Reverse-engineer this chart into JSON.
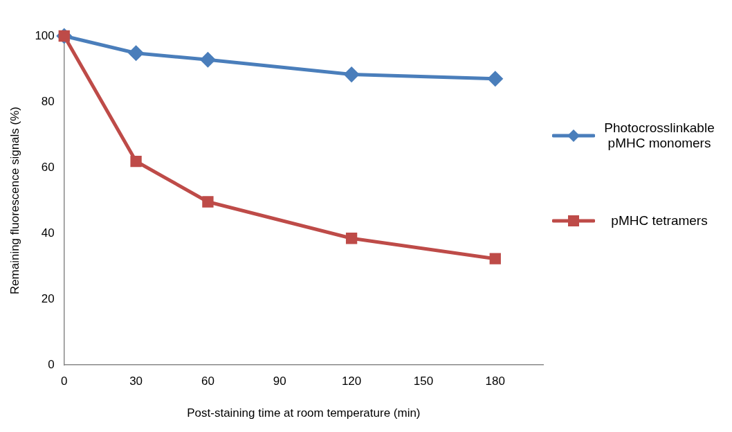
{
  "chart_data": {
    "type": "line",
    "xlabel": "Post-staining time at room temperature (min)",
    "ylabel": "Remaining fluorescence signals (%)",
    "x": [
      0,
      30,
      60,
      120,
      180
    ],
    "xlim": [
      0,
      200
    ],
    "xticks": [
      0,
      30,
      60,
      90,
      120,
      150,
      180
    ],
    "ylim": [
      0,
      100
    ],
    "yticks": [
      0,
      20,
      40,
      60,
      80,
      100
    ],
    "grid": false,
    "legend": "right",
    "series": [
      {
        "name": "Photocrosslinkable pMHC monomers",
        "color": "#4a7ebb",
        "marker": "diamond",
        "values": [
          100,
          94.8,
          92.8,
          88.3,
          87.0
        ]
      },
      {
        "name": "pMHC tetramers",
        "color": "#be4b48",
        "marker": "square",
        "values": [
          100,
          61.9,
          49.6,
          38.5,
          32.3
        ]
      }
    ]
  }
}
